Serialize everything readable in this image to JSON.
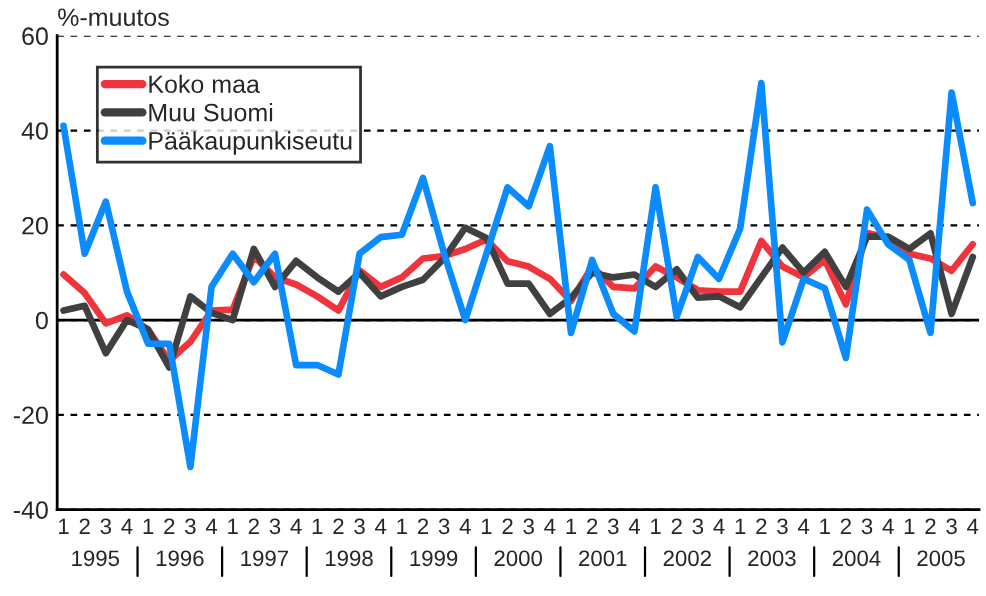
{
  "chart_data": {
    "type": "line",
    "ylabel": "%-muutos",
    "categories": [
      "1",
      "2",
      "3",
      "4",
      "1",
      "2",
      "3",
      "4",
      "1",
      "2",
      "3",
      "4",
      "1",
      "2",
      "3",
      "4",
      "1",
      "2",
      "3",
      "4",
      "1",
      "2",
      "3",
      "4",
      "1",
      "2",
      "3",
      "4",
      "1",
      "2",
      "3",
      "4",
      "1",
      "2",
      "3",
      "4",
      "1",
      "2",
      "3",
      "4",
      "1",
      "2",
      "3",
      "4"
    ],
    "annotations": [
      "1995",
      "1996",
      "1997",
      "1998",
      "1999",
      "2000",
      "2001",
      "2002",
      "2003",
      "2004",
      "2005"
    ],
    "series": [
      {
        "name": "Koko maa",
        "color": "#f0343c",
        "values": [
          9.6,
          5.7,
          -0.7,
          1,
          -2,
          -8.6,
          -4.6,
          2,
          2.2,
          13.5,
          9,
          7.5,
          5,
          2,
          10.5,
          7,
          9,
          13,
          13.5,
          15,
          17,
          12.4,
          11.3,
          8.7,
          4,
          11.3,
          7,
          6.7,
          11.3,
          9,
          6.3,
          6,
          6,
          16.7,
          11.3,
          9,
          12.7,
          3.3,
          18.4,
          17.3,
          14,
          13,
          10.4,
          16
        ]
      },
      {
        "name": "Muu Suomi",
        "color": "#404040",
        "values": [
          2,
          3,
          -7,
          0,
          -2,
          -10,
          5,
          1.5,
          0,
          15,
          7,
          12.5,
          9,
          6,
          10,
          5,
          7,
          8.5,
          13,
          19.5,
          17.3,
          7.7,
          7.7,
          1.3,
          4.7,
          10,
          9,
          9.6,
          7,
          10.7,
          4.7,
          5,
          2.7,
          9,
          15.3,
          10,
          14.4,
          7,
          17.6,
          17.6,
          15,
          18.3,
          1.3,
          13.3
        ]
      },
      {
        "name": "Pääkaupunkiseutu",
        "color": "#0a8cff",
        "values": [
          41,
          14,
          25,
          6,
          -5,
          -5,
          -31,
          7,
          14,
          8,
          14,
          -9.5,
          -9.5,
          -11.5,
          14,
          17.5,
          18,
          30,
          14,
          0,
          14,
          28,
          24,
          36.7,
          -2.7,
          12.7,
          1.3,
          -2.4,
          28,
          0.7,
          13.3,
          8.7,
          19.3,
          50,
          -4.7,
          8.7,
          6.7,
          -8,
          23.3,
          16,
          12.7,
          -2.7,
          48,
          24.7
        ]
      }
    ],
    "ylim": [
      -40,
      60
    ],
    "yticks": [
      -40,
      -20,
      0,
      20,
      40,
      60
    ],
    "grid": "y",
    "legend": "top left",
    "ref_lines": [
      {
        "axis": "y",
        "value": 0,
        "color": "#000000"
      }
    ]
  }
}
